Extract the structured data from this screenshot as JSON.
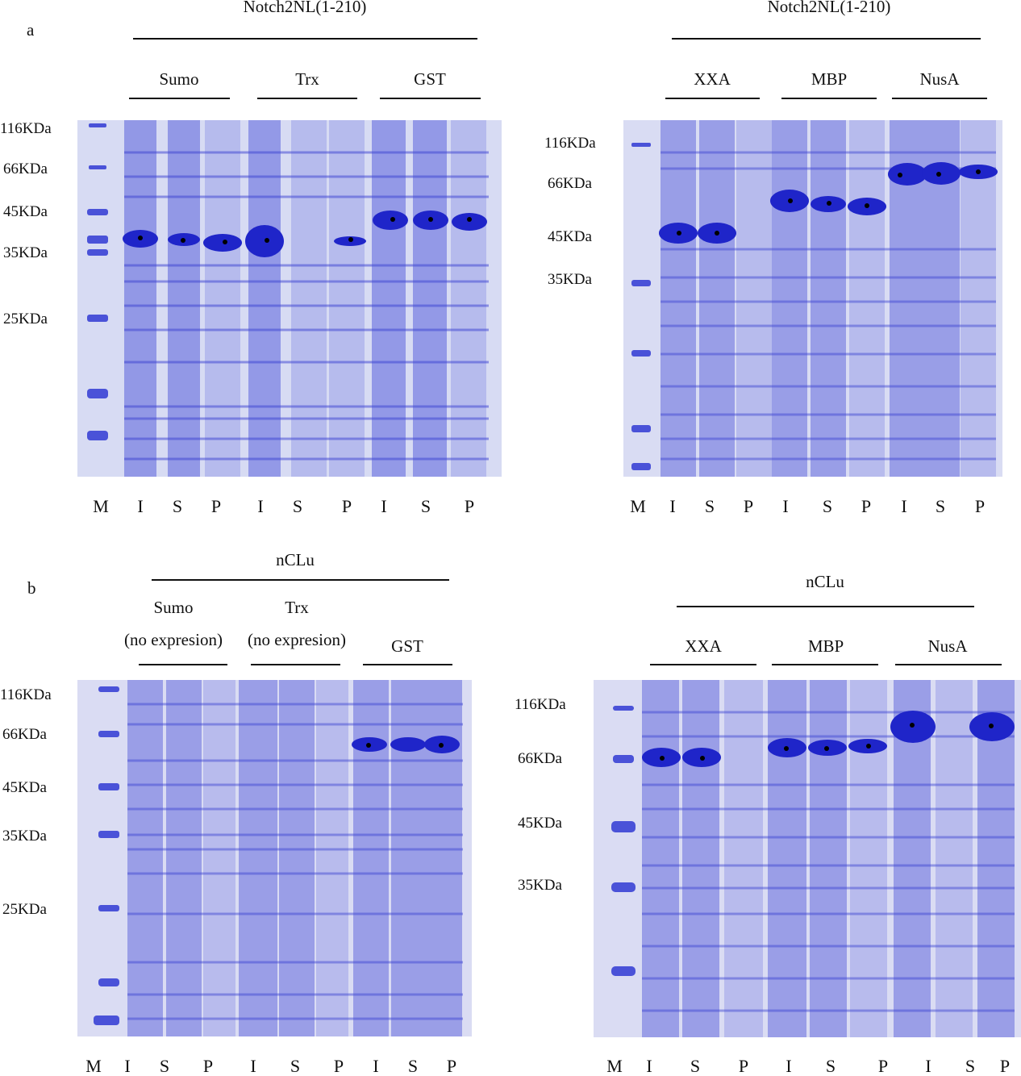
{
  "panels": {
    "a": {
      "letter": "a"
    },
    "b": {
      "letter": "b"
    }
  },
  "gels": [
    {
      "id": "a-left",
      "construct": "Notch2NL(1-210)",
      "groups": [
        "Sumo",
        "Trx",
        "GST"
      ],
      "group_notes": [
        "",
        "",
        ""
      ],
      "mw_markers": [
        "116KDa",
        "66KDa",
        "45KDa",
        "35KDa",
        "25KDa"
      ],
      "lanes": [
        "M",
        "I",
        "S",
        "P",
        "I",
        "S",
        "P",
        "I",
        "S",
        "P"
      ]
    },
    {
      "id": "a-right",
      "construct": "Notch2NL(1-210)",
      "groups": [
        "XXA",
        "MBP",
        "NusA"
      ],
      "group_notes": [
        "",
        "",
        ""
      ],
      "mw_markers": [
        "116KDa",
        "66KDa",
        "45KDa",
        "35KDa"
      ],
      "lanes": [
        "M",
        "I",
        "S",
        "P",
        "I",
        "S",
        "P",
        "I",
        "S",
        "P"
      ]
    },
    {
      "id": "b-left",
      "construct": "nCLu",
      "groups": [
        "Sumo",
        "Trx",
        "GST"
      ],
      "group_notes": [
        "(no expresion)",
        "(no expresion)",
        ""
      ],
      "mw_markers": [
        "116KDa",
        "66KDa",
        "45KDa",
        "35KDa",
        "25KDa"
      ],
      "lanes": [
        "M",
        "I",
        "S",
        "P",
        "I",
        "S",
        "P",
        "I",
        "S",
        "P"
      ]
    },
    {
      "id": "b-right",
      "construct": "nCLu",
      "groups": [
        "XXA",
        "MBP",
        "NusA"
      ],
      "group_notes": [
        "",
        "",
        ""
      ],
      "mw_markers": [
        "116KDa",
        "66KDa",
        "45KDa",
        "35KDa"
      ],
      "lanes": [
        "M",
        "I",
        "S",
        "P",
        "I",
        "S",
        "P",
        "I",
        "S",
        "P"
      ]
    }
  ],
  "colors": {
    "gel_background": "#d6d9f2",
    "band": "#2a2fd0",
    "band_strong": "#1a1fc8",
    "dot": "#000000"
  }
}
